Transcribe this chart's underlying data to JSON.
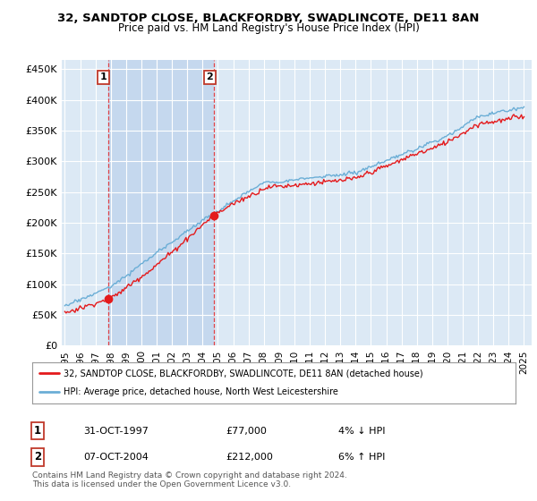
{
  "title_line1": "32, SANDTOP CLOSE, BLACKFORDBY, SWADLINCOTE, DE11 8AN",
  "title_line2": "Price paid vs. HM Land Registry's House Price Index (HPI)",
  "background_color": "#ffffff",
  "plot_bg_color": "#dce9f5",
  "shade_color": "#c5d8ee",
  "grid_color": "#ffffff",
  "hpi_color": "#6baed6",
  "price_color": "#e41a1c",
  "sale1_x": 1997.83,
  "sale1_y": 77000,
  "sale1_label": "1",
  "sale2_x": 2004.77,
  "sale2_y": 212000,
  "sale2_label": "2",
  "yticks": [
    0,
    50000,
    100000,
    150000,
    200000,
    250000,
    300000,
    350000,
    400000,
    450000
  ],
  "ylim": [
    0,
    465000
  ],
  "xlim_start": 1994.8,
  "xlim_end": 2025.5,
  "xticks": [
    1995,
    1996,
    1997,
    1998,
    1999,
    2000,
    2001,
    2002,
    2003,
    2004,
    2005,
    2006,
    2007,
    2008,
    2009,
    2010,
    2011,
    2012,
    2013,
    2014,
    2015,
    2016,
    2017,
    2018,
    2019,
    2020,
    2021,
    2022,
    2023,
    2024,
    2025
  ],
  "legend_entry1": "32, SANDTOP CLOSE, BLACKFORDBY, SWADLINCOTE, DE11 8AN (detached house)",
  "legend_entry2": "HPI: Average price, detached house, North West Leicestershire",
  "table_row1_num": "1",
  "table_row1_date": "31-OCT-1997",
  "table_row1_price": "£77,000",
  "table_row1_hpi": "4% ↓ HPI",
  "table_row2_num": "2",
  "table_row2_date": "07-OCT-2004",
  "table_row2_price": "£212,000",
  "table_row2_hpi": "6% ↑ HPI",
  "footnote": "Contains HM Land Registry data © Crown copyright and database right 2024.\nThis data is licensed under the Open Government Licence v3.0.",
  "dashed_line1_x": 1997.83,
  "dashed_line2_x": 2004.77
}
